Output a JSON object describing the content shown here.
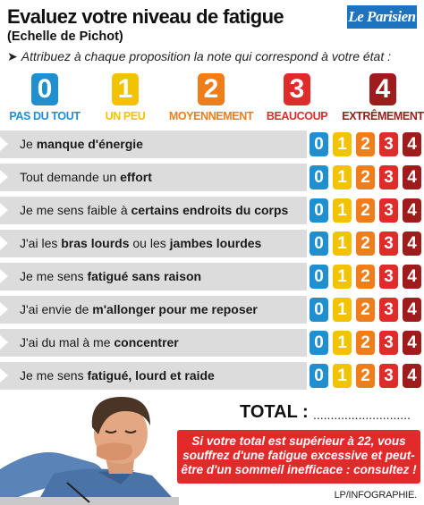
{
  "header": {
    "title": "Evaluez votre niveau de fatigue",
    "subtitle": "(Echelle de Pichot)",
    "logo": "Le Parisien"
  },
  "instruction": {
    "arrow": "➤",
    "text": "Attribuez à chaque proposition la note qui correspond à votre état :"
  },
  "colors": {
    "score_0": "#1f8fd0",
    "score_1": "#f2c300",
    "score_2": "#ef7d1a",
    "score_3": "#e02b2b",
    "score_4": "#9e1c1c",
    "row_bg": "#dcdcdc",
    "warning_bg": "#e32a2a"
  },
  "legend": [
    {
      "value": "0",
      "label": "PAS DU TOUT",
      "color": "#1f8fd0"
    },
    {
      "value": "1",
      "label": "UN PEU",
      "color": "#f2c300"
    },
    {
      "value": "2",
      "label": "MOYENNEMENT",
      "color": "#ef7d1a"
    },
    {
      "value": "3",
      "label": "BEAUCOUP",
      "color": "#e02b2b"
    },
    {
      "value": "4",
      "label": "EXTRÊMEMENT",
      "color": "#9e1c1c"
    }
  ],
  "scale_values": [
    "0",
    "1",
    "2",
    "3",
    "4"
  ],
  "statements": [
    {
      "pre": "Je ",
      "bold": "manque d'énergie",
      "mid": "",
      "bold2": ""
    },
    {
      "pre": "Tout demande un ",
      "bold": "effort",
      "mid": "",
      "bold2": ""
    },
    {
      "pre": "Je me sens faible à ",
      "bold": "certains endroits du corps",
      "mid": "",
      "bold2": ""
    },
    {
      "pre": "J'ai les ",
      "bold": "bras lourds",
      "mid": " ou les ",
      "bold2": "jambes lourdes"
    },
    {
      "pre": "Je me sens ",
      "bold": "fatigué sans raison",
      "mid": "",
      "bold2": ""
    },
    {
      "pre": "J'ai envie de ",
      "bold": "m'allonger pour me reposer",
      "mid": "",
      "bold2": ""
    },
    {
      "pre": "J'ai du mal à me ",
      "bold": "concentrer",
      "mid": "",
      "bold2": ""
    },
    {
      "pre": "Je me sens ",
      "bold": "fatigué, lourd et raide",
      "mid": "",
      "bold2": ""
    }
  ],
  "total": {
    "label": "TOTAL :",
    "dots": "............................"
  },
  "warning": {
    "lines": [
      "Si votre total est supérieur à 22, vous",
      "souffrez d'une fatigue excessive et peut-",
      "être d'un sommeil inefficace : consultez !"
    ]
  },
  "credit": "LP/INFOGRAPHIE."
}
